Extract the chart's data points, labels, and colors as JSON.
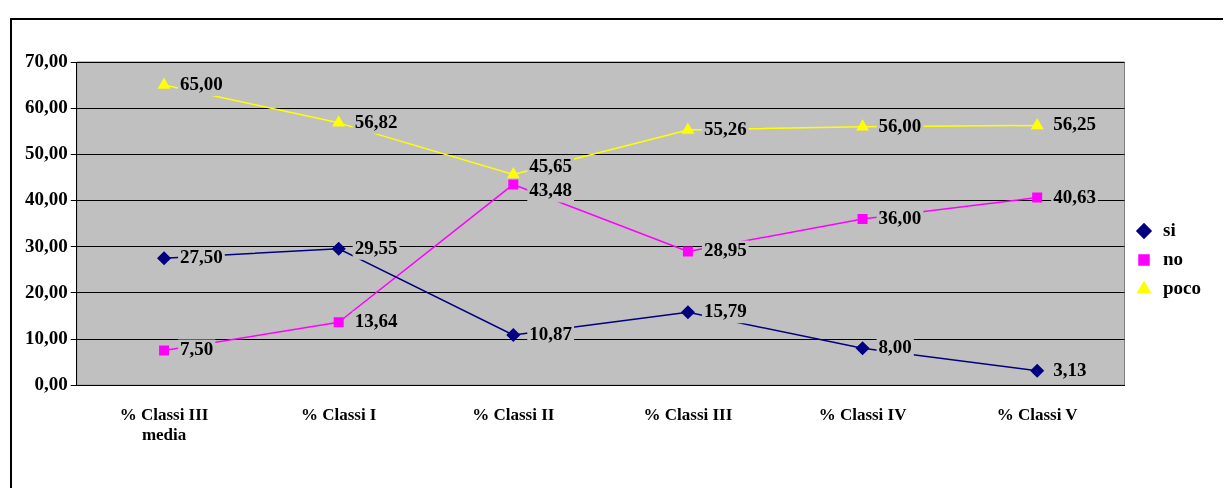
{
  "chart_data": {
    "type": "line",
    "categories": [
      "% Classi III\nmedia",
      "% Classi I",
      "% Classi II",
      "% Classi III",
      "% Classi IV",
      "% Classi V"
    ],
    "series": [
      {
        "name": "si",
        "color": "#000080",
        "marker": "diamond",
        "values": [
          27.5,
          29.55,
          10.87,
          15.79,
          8,
          3.13
        ],
        "value_labels": [
          "27,50",
          "29,55",
          "10,87",
          "15,79",
          "8,00",
          "3,13"
        ]
      },
      {
        "name": "no",
        "color": "#ff00ff",
        "marker": "square",
        "values": [
          7.5,
          13.64,
          43.48,
          28.95,
          36,
          40.63
        ],
        "value_labels": [
          "7,50",
          "13,64",
          "43,48",
          "28,95",
          "36,00",
          "40,63"
        ]
      },
      {
        "name": "poco",
        "color": "#ffff00",
        "marker": "triangle",
        "values": [
          65,
          56.82,
          45.65,
          55.26,
          56,
          56.25
        ],
        "value_labels": [
          "65,00",
          "56,82",
          "45,65",
          "55,26",
          "56,00",
          "56,25"
        ]
      }
    ],
    "ylim": [
      0,
      70
    ],
    "yticks": [
      {
        "value": 0,
        "label": "0,00"
      },
      {
        "value": 10,
        "label": "10,00"
      },
      {
        "value": 20,
        "label": "20,00"
      },
      {
        "value": 30,
        "label": "30,00"
      },
      {
        "value": 40,
        "label": "40,00"
      },
      {
        "value": 50,
        "label": "50,00"
      },
      {
        "value": 60,
        "label": "60,00"
      },
      {
        "value": 70,
        "label": "70,00"
      }
    ],
    "grid": "y",
    "legend": "right"
  }
}
